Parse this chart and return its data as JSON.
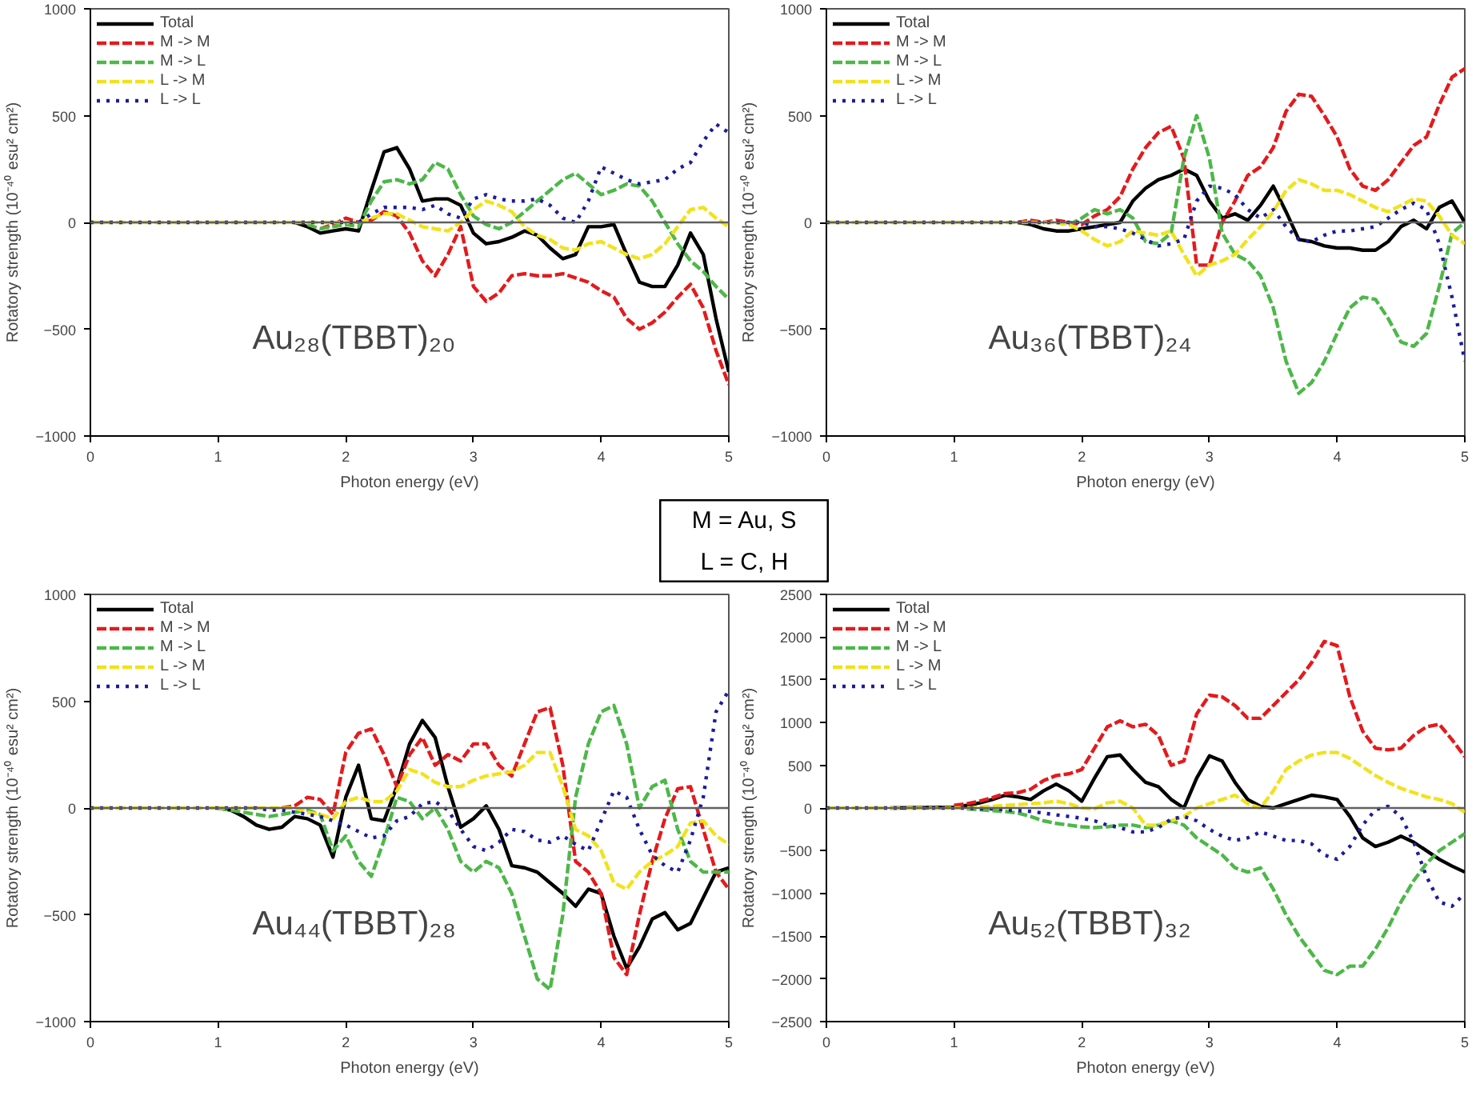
{
  "chart_data": [
    {
      "type": "line",
      "xlabel": "Photon energy (eV)",
      "ylabel": "Rotatory strength (10⁻⁴⁰ esu² cm²)",
      "xlim": [
        0,
        5
      ],
      "xticks": [
        0,
        1,
        2,
        3,
        4,
        5
      ],
      "ylim": [
        -1000,
        1000
      ],
      "yticks": [
        -1000,
        -500,
        0,
        500,
        1000
      ],
      "legend": "top left",
      "grid": false,
      "ref_lines": [
        {
          "axis": "y",
          "value": 0,
          "color": "#606060"
        }
      ],
      "annotations": [
        "Au₂₈(TBBT)₂₀"
      ],
      "x": [
        0,
        0.5,
        1.0,
        1.1,
        1.2,
        1.3,
        1.4,
        1.5,
        1.6,
        1.7,
        1.8,
        1.9,
        2.0,
        2.1,
        2.2,
        2.3,
        2.4,
        2.5,
        2.6,
        2.7,
        2.8,
        2.9,
        3.0,
        3.1,
        3.2,
        3.3,
        3.4,
        3.5,
        3.6,
        3.7,
        3.8,
        3.9,
        4.0,
        4.1,
        4.2,
        4.3,
        4.4,
        4.5,
        4.6,
        4.7,
        4.8,
        4.9,
        5.0
      ],
      "series": [
        {
          "name": "Total",
          "color": "#000000",
          "line_style": "solid",
          "values": [
            null,
            null,
            null,
            null,
            null,
            null,
            null,
            null,
            0,
            -20,
            -50,
            -40,
            -30,
            -40,
            150,
            330,
            350,
            250,
            100,
            110,
            110,
            80,
            -50,
            -100,
            -90,
            -70,
            -40,
            -60,
            -120,
            -170,
            -150,
            -20,
            -20,
            -10,
            -150,
            -280,
            -300,
            -300,
            -200,
            -50,
            -150,
            -450,
            -700
          ]
        },
        {
          "name": "M -> M",
          "color": "#e41a1c",
          "line_style": "dashed",
          "values": [
            null,
            null,
            null,
            null,
            null,
            null,
            null,
            null,
            null,
            null,
            -30,
            -10,
            20,
            0,
            10,
            50,
            30,
            -50,
            -180,
            -250,
            -150,
            -20,
            -300,
            -370,
            -330,
            -250,
            -240,
            -250,
            -250,
            -240,
            -260,
            -280,
            -320,
            -350,
            -450,
            -500,
            -470,
            -420,
            -350,
            -290,
            -400,
            -600,
            -760
          ]
        },
        {
          "name": "M -> L",
          "color": "#4cb848",
          "line_style": "dashed",
          "values": [
            null,
            null,
            null,
            null,
            null,
            null,
            null,
            null,
            null,
            -10,
            -30,
            -20,
            -10,
            -20,
            100,
            190,
            200,
            180,
            200,
            280,
            250,
            130,
            30,
            -10,
            -30,
            0,
            50,
            100,
            150,
            200,
            230,
            180,
            130,
            150,
            180,
            170,
            100,
            0,
            -100,
            -180,
            -230,
            -300,
            -360
          ]
        },
        {
          "name": "L -> M",
          "color": "#f2e21a",
          "line_style": "dashed",
          "values": [
            0,
            0,
            0,
            0,
            0,
            0,
            0,
            0,
            0,
            0,
            0,
            0,
            0,
            0,
            20,
            40,
            40,
            10,
            -20,
            -30,
            -40,
            0,
            60,
            100,
            80,
            50,
            -20,
            -60,
            -80,
            -120,
            -130,
            -100,
            -90,
            -120,
            -150,
            -170,
            -150,
            -100,
            -20,
            60,
            70,
            20,
            -20
          ]
        },
        {
          "name": "L -> L",
          "color": "#1c1c9c",
          "line_style": "dotted",
          "values": [
            0,
            0,
            0,
            0,
            0,
            0,
            0,
            0,
            0,
            0,
            0,
            0,
            0,
            0,
            40,
            70,
            70,
            70,
            60,
            80,
            40,
            20,
            110,
            130,
            110,
            100,
            100,
            110,
            80,
            20,
            0,
            100,
            260,
            230,
            200,
            180,
            190,
            200,
            250,
            280,
            380,
            460,
            420
          ]
        }
      ]
    },
    {
      "type": "line",
      "xlabel": "Photon energy (eV)",
      "ylabel": "Rotatory strength (10⁻⁴⁰ esu² cm²)",
      "xlim": [
        0,
        5
      ],
      "xticks": [
        0,
        1,
        2,
        3,
        4,
        5
      ],
      "ylim": [
        -1000,
        1000
      ],
      "yticks": [
        -1000,
        -500,
        0,
        500,
        1000
      ],
      "legend": "top left",
      "grid": false,
      "ref_lines": [
        {
          "axis": "y",
          "value": 0,
          "color": "#606060"
        }
      ],
      "annotations": [
        "Au₃₆(TBBT)₂₄"
      ],
      "x": [
        0,
        0.5,
        1.0,
        1.1,
        1.2,
        1.3,
        1.4,
        1.5,
        1.6,
        1.7,
        1.8,
        1.9,
        2.0,
        2.1,
        2.2,
        2.3,
        2.4,
        2.5,
        2.6,
        2.7,
        2.8,
        2.9,
        3.0,
        3.1,
        3.2,
        3.3,
        3.4,
        3.5,
        3.6,
        3.7,
        3.8,
        3.9,
        4.0,
        4.1,
        4.2,
        4.3,
        4.4,
        4.5,
        4.6,
        4.7,
        4.8,
        4.9,
        5.0
      ],
      "series": [
        {
          "name": "Total",
          "color": "#000000",
          "line_style": "solid",
          "values": [
            null,
            null,
            null,
            null,
            null,
            null,
            null,
            0,
            -10,
            -30,
            -40,
            -40,
            -30,
            -20,
            -10,
            0,
            100,
            160,
            200,
            220,
            250,
            220,
            100,
            20,
            40,
            10,
            80,
            170,
            50,
            -80,
            -90,
            -110,
            -120,
            -120,
            -130,
            -130,
            -90,
            -20,
            10,
            -30,
            70,
            100,
            0
          ]
        },
        {
          "name": "M -> M",
          "color": "#e41a1c",
          "line_style": "dashed",
          "values": [
            null,
            null,
            null,
            null,
            null,
            null,
            null,
            0,
            10,
            0,
            10,
            0,
            -10,
            30,
            60,
            120,
            250,
            350,
            420,
            450,
            300,
            -200,
            -200,
            0,
            100,
            220,
            260,
            350,
            520,
            600,
            590,
            500,
            400,
            250,
            170,
            150,
            200,
            280,
            360,
            400,
            550,
            680,
            720
          ]
        },
        {
          "name": "M -> L",
          "color": "#4cb848",
          "line_style": "dashed",
          "values": [
            null,
            null,
            null,
            null,
            null,
            null,
            null,
            null,
            null,
            null,
            0,
            -10,
            20,
            60,
            40,
            60,
            20,
            -90,
            -100,
            -50,
            300,
            500,
            300,
            -50,
            -150,
            -180,
            -250,
            -400,
            -650,
            -800,
            -750,
            -650,
            -520,
            -400,
            -350,
            -360,
            -450,
            -560,
            -580,
            -520,
            -300,
            -50,
            0
          ]
        },
        {
          "name": "L -> M",
          "color": "#f2e21a",
          "line_style": "dashed",
          "values": [
            0,
            0,
            0,
            0,
            0,
            0,
            0,
            0,
            0,
            0,
            0,
            -10,
            -40,
            -80,
            -110,
            -90,
            -40,
            -50,
            -60,
            -40,
            -150,
            -250,
            -200,
            -180,
            -150,
            -80,
            -20,
            50,
            150,
            200,
            180,
            150,
            150,
            130,
            100,
            70,
            50,
            80,
            110,
            100,
            30,
            -60,
            -100
          ]
        },
        {
          "name": "L -> L",
          "color": "#1c1c9c",
          "line_style": "dotted",
          "values": [
            0,
            0,
            0,
            0,
            0,
            0,
            0,
            0,
            0,
            0,
            0,
            0,
            0,
            -20,
            -20,
            -30,
            -50,
            -80,
            -110,
            -100,
            -80,
            100,
            170,
            160,
            130,
            60,
            20,
            60,
            -20,
            -80,
            -90,
            -60,
            -40,
            -40,
            -30,
            -20,
            20,
            60,
            90,
            60,
            -100,
            -350,
            -650
          ]
        }
      ]
    },
    {
      "type": "other",
      "annotations": [
        "M = Au, S",
        "L = C, H"
      ]
    },
    {
      "type": "line",
      "xlabel": "Photon energy (eV)",
      "ylabel": "Rotatory strength (10⁻⁴⁰ esu² cm²)",
      "xlim": [
        0,
        5
      ],
      "xticks": [
        0,
        1,
        2,
        3,
        4,
        5
      ],
      "ylim": [
        -1000,
        1000
      ],
      "yticks": [
        -1000,
        -500,
        0,
        500,
        1000
      ],
      "legend": "top left",
      "grid": false,
      "ref_lines": [
        {
          "axis": "y",
          "value": 0,
          "color": "#606060"
        }
      ],
      "annotations": [
        "Au₄₄(TBBT)₂₈"
      ],
      "x": [
        0,
        0.5,
        1.0,
        1.1,
        1.2,
        1.3,
        1.4,
        1.5,
        1.6,
        1.7,
        1.8,
        1.9,
        2.0,
        2.1,
        2.2,
        2.3,
        2.4,
        2.5,
        2.6,
        2.7,
        2.8,
        2.9,
        3.0,
        3.1,
        3.2,
        3.3,
        3.4,
        3.5,
        3.6,
        3.7,
        3.8,
        3.9,
        4.0,
        4.1,
        4.2,
        4.3,
        4.4,
        4.5,
        4.6,
        4.7,
        4.8,
        4.9,
        5.0
      ],
      "series": [
        {
          "name": "Total",
          "color": "#000000",
          "line_style": "solid",
          "values": [
            null,
            null,
            0,
            -10,
            -40,
            -80,
            -100,
            -90,
            -40,
            -50,
            -80,
            -230,
            50,
            200,
            -50,
            -60,
            100,
            300,
            410,
            330,
            100,
            -90,
            -50,
            10,
            -100,
            -270,
            -280,
            -300,
            -350,
            -400,
            -460,
            -380,
            -400,
            -600,
            -750,
            -650,
            -520,
            -490,
            -570,
            -540,
            -420,
            -300,
            -280
          ]
        },
        {
          "name": "M -> M",
          "color": "#e41a1c",
          "line_style": "dashed",
          "values": [
            null,
            null,
            null,
            null,
            null,
            null,
            null,
            0,
            10,
            50,
            40,
            -30,
            260,
            350,
            370,
            250,
            100,
            250,
            330,
            200,
            250,
            220,
            300,
            300,
            200,
            150,
            300,
            450,
            470,
            200,
            -250,
            -300,
            -400,
            -700,
            -780,
            -500,
            -250,
            -50,
            90,
            100,
            -100,
            -300,
            -380
          ]
        },
        {
          "name": "M -> L",
          "color": "#4cb848",
          "line_style": "dashed",
          "values": [
            null,
            null,
            0,
            -10,
            -20,
            -30,
            -40,
            -30,
            -20,
            -10,
            -30,
            -200,
            -130,
            -250,
            -320,
            -150,
            50,
            30,
            -50,
            0,
            -100,
            -250,
            -300,
            -250,
            -280,
            -400,
            -600,
            -800,
            -850,
            -500,
            50,
            300,
            450,
            480,
            300,
            0,
            100,
            130,
            -100,
            -250,
            -300,
            -300,
            -300
          ]
        },
        {
          "name": "L -> M",
          "color": "#f2e21a",
          "line_style": "dashed",
          "values": [
            0,
            0,
            0,
            0,
            0,
            0,
            0,
            0,
            0,
            -20,
            -30,
            -50,
            30,
            50,
            30,
            30,
            80,
            180,
            160,
            120,
            100,
            100,
            130,
            150,
            160,
            170,
            200,
            260,
            260,
            100,
            -100,
            -130,
            -200,
            -350,
            -380,
            -300,
            -250,
            -220,
            -180,
            -70,
            -60,
            -130,
            -170
          ]
        },
        {
          "name": "L -> L",
          "color": "#1c1c9c",
          "line_style": "dotted",
          "values": [
            0,
            0,
            0,
            0,
            0,
            0,
            -10,
            -10,
            -20,
            -30,
            -40,
            -60,
            -80,
            -110,
            -140,
            -130,
            -60,
            -40,
            20,
            30,
            -10,
            -100,
            -180,
            -200,
            -160,
            -100,
            -110,
            -150,
            -160,
            -130,
            -170,
            -200,
            -60,
            80,
            50,
            -100,
            -220,
            -270,
            -300,
            -150,
            50,
            450,
            550
          ]
        }
      ]
    },
    {
      "type": "line",
      "xlabel": "Photon energy (eV)",
      "ylabel": "Rotatory strength (10⁻⁴⁰ esu² cm²)",
      "xlim": [
        0,
        5
      ],
      "xticks": [
        0,
        1,
        2,
        3,
        4,
        5
      ],
      "ylim": [
        -2500,
        2500
      ],
      "yticks": [
        -2500,
        -2000,
        -1500,
        -1000,
        -500,
        0,
        500,
        1000,
        1500,
        2000,
        2500
      ],
      "legend": "top left",
      "grid": false,
      "ref_lines": [
        {
          "axis": "y",
          "value": 0,
          "color": "#606060"
        }
      ],
      "annotations": [
        "Au₅₂(TBBT)₃₂"
      ],
      "x": [
        0,
        0.5,
        1.0,
        1.1,
        1.2,
        1.3,
        1.4,
        1.5,
        1.6,
        1.7,
        1.8,
        1.9,
        2.0,
        2.1,
        2.2,
        2.3,
        2.4,
        2.5,
        2.6,
        2.7,
        2.8,
        2.9,
        3.0,
        3.1,
        3.2,
        3.3,
        3.4,
        3.5,
        3.6,
        3.7,
        3.8,
        3.9,
        4.0,
        4.1,
        4.2,
        4.3,
        4.4,
        4.5,
        4.6,
        4.7,
        4.8,
        4.9,
        5.0
      ],
      "series": [
        {
          "name": "Total",
          "color": "#000000",
          "line_style": "solid",
          "values": [
            null,
            0,
            10,
            30,
            60,
            100,
            150,
            130,
            100,
            200,
            280,
            200,
            80,
            350,
            600,
            620,
            450,
            300,
            250,
            100,
            0,
            350,
            610,
            550,
            300,
            100,
            20,
            0,
            50,
            100,
            150,
            130,
            100,
            -100,
            -350,
            -450,
            -400,
            -330,
            -400,
            -500,
            -600,
            -680,
            -750
          ]
        },
        {
          "name": "M -> M",
          "color": "#e41a1c",
          "line_style": "dashed",
          "values": [
            null,
            null,
            30,
            50,
            80,
            120,
            170,
            180,
            220,
            320,
            380,
            400,
            450,
            700,
            950,
            1020,
            950,
            980,
            850,
            500,
            550,
            1100,
            1320,
            1300,
            1200,
            1050,
            1050,
            1200,
            1350,
            1500,
            1700,
            1950,
            1900,
            1300,
            900,
            700,
            680,
            700,
            850,
            950,
            980,
            800,
            600
          ]
        },
        {
          "name": "M -> L",
          "color": "#4cb848",
          "line_style": "dashed",
          "values": [
            null,
            null,
            null,
            -10,
            -20,
            -30,
            -40,
            -60,
            -100,
            -150,
            -180,
            -200,
            -220,
            -230,
            -220,
            -200,
            -200,
            -230,
            -200,
            -150,
            -200,
            -350,
            -450,
            -550,
            -700,
            -750,
            -700,
            -950,
            -1250,
            -1500,
            -1700,
            -1900,
            -1950,
            -1850,
            -1850,
            -1650,
            -1400,
            -1100,
            -850,
            -650,
            -500,
            -400,
            -300
          ]
        },
        {
          "name": "L -> M",
          "color": "#f2e21a",
          "line_style": "dashed",
          "values": [
            0,
            0,
            0,
            0,
            10,
            20,
            30,
            40,
            50,
            60,
            80,
            50,
            0,
            -10,
            60,
            80,
            0,
            -200,
            -200,
            -150,
            -100,
            0,
            50,
            100,
            150,
            50,
            0,
            200,
            450,
            550,
            620,
            650,
            650,
            580,
            480,
            380,
            300,
            230,
            180,
            130,
            100,
            50,
            -50
          ]
        },
        {
          "name": "L -> L",
          "color": "#1c1c9c",
          "line_style": "dotted",
          "values": [
            0,
            0,
            0,
            0,
            -10,
            -10,
            -20,
            -30,
            -40,
            -60,
            -80,
            -100,
            -120,
            -150,
            -200,
            -230,
            -280,
            -280,
            -230,
            -130,
            -100,
            -150,
            -250,
            -330,
            -380,
            -350,
            -280,
            -330,
            -380,
            -380,
            -420,
            -550,
            -600,
            -450,
            -200,
            -20,
            20,
            -100,
            -400,
            -800,
            -1100,
            -1150,
            -1000
          ]
        }
      ]
    }
  ]
}
